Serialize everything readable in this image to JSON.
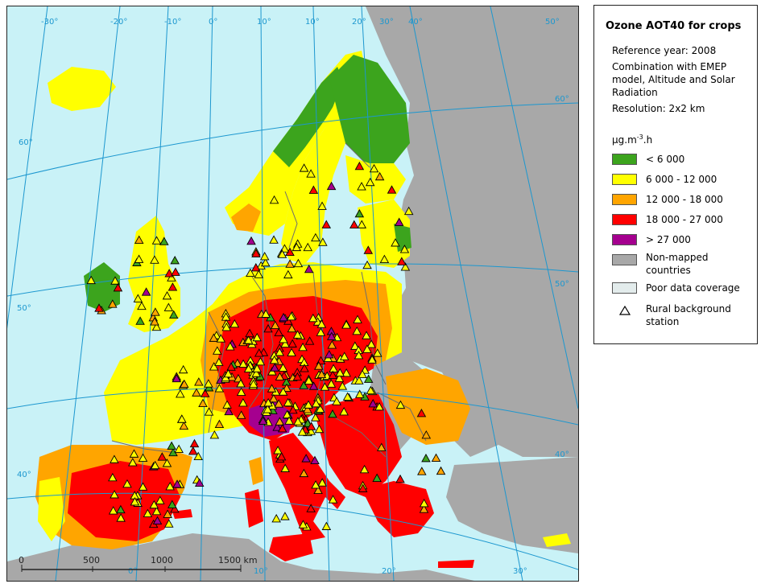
{
  "legend": {
    "title": "Ozone AOT40 for crops",
    "reference_year": "Reference year: 2008",
    "combination": "Combination with EMEP model, Altitude and Solar Radiation",
    "resolution": "Resolution: 2x2 km",
    "unit_main": "µg.m",
    "unit_sup": "-3",
    "unit_end": ".h",
    "classes": [
      {
        "label": "< 6 000",
        "color": "#3ca41d"
      },
      {
        "label": "6 000 - 12 000",
        "color": "#ffff00"
      },
      {
        "label": "12 000 - 18 000",
        "color": "#ffa500"
      },
      {
        "label": "18 000 - 27 000",
        "color": "#ff0000"
      },
      {
        "label": "> 27 000",
        "color": "#a5008f"
      }
    ],
    "non_mapped": {
      "label": "Non-mapped countries",
      "color": "#a8a8a8"
    },
    "poor_coverage": {
      "label": "Poor data coverage",
      "color": "#e3ecec"
    },
    "station": {
      "label": "Rural background station"
    }
  },
  "map": {
    "graticule_labels": [
      "-30°",
      "-20°",
      "-10°",
      "0°",
      "10°",
      "20°",
      "30°",
      "40°",
      "50°",
      "60°",
      "60°",
      "60°",
      "50°",
      "50°",
      "40°",
      "40°",
      "20°",
      "30°",
      "10°",
      "0°"
    ],
    "scale_bar": {
      "labels": [
        "0",
        "500",
        "1000",
        "1500 km"
      ]
    },
    "colors": {
      "sea": "#c9f2f7",
      "nonmapped": "#a8a8a8",
      "border": "#6d6d6d",
      "graticule": "#1c97cf"
    }
  }
}
